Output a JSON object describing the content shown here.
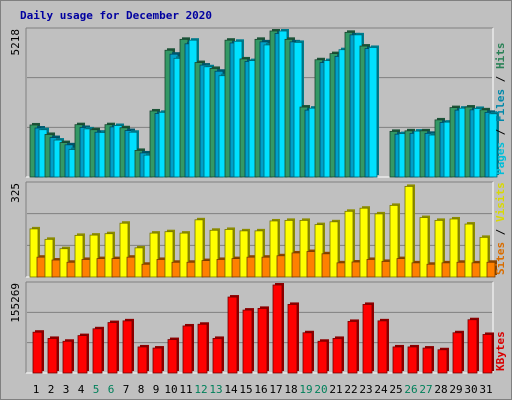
{
  "chart_data": {
    "type": "bar",
    "title": "Daily usage for December 2020",
    "days": [
      "1",
      "2",
      "3",
      "4",
      "5",
      "6",
      "7",
      "8",
      "9",
      "10",
      "11",
      "12",
      "13",
      "14",
      "15",
      "16",
      "17",
      "18",
      "19",
      "20",
      "21",
      "22",
      "23",
      "24",
      "25",
      "26",
      "27",
      "28",
      "29",
      "30",
      "31"
    ],
    "weekend_days": [
      "5",
      "6",
      "12",
      "13",
      "19",
      "20",
      "26",
      "27"
    ],
    "panels": [
      {
        "name": "hits-files-pages",
        "max_label": "5218",
        "ymax": 5218,
        "legend": [
          "Pages",
          "Files",
          "Hits"
        ],
        "series": [
          {
            "name": "Hits",
            "color": "#339966",
            "values": [
              1860,
              1520,
              1230,
              1870,
              1690,
              1870,
              1760,
              950,
              2360,
              4530,
              4920,
              4090,
              3880,
              4890,
              4220,
              4920,
              5218,
              4920,
              2500,
              4190,
              4410,
              5170,
              4680,
              null,
              1630,
              1650,
              1650,
              2040,
              2480,
              2500,
              2400
            ]
          },
          {
            "name": "Files",
            "color": "#00a0c8",
            "values": [
              1750,
              1410,
              1150,
              1770,
              1600,
              1790,
              1660,
              860,
              2270,
              4390,
              4760,
              4000,
              3780,
              4790,
              4130,
              4830,
              5130,
              4830,
              2390,
              4090,
              4310,
              5080,
              4590,
              null,
              1530,
              1560,
              1560,
              1950,
              2390,
              2400,
              2310
            ]
          },
          {
            "name": "Pages",
            "color": "#00e0ff",
            "values": [
              1690,
              1320,
              980,
              1720,
              1590,
              1840,
              1600,
              780,
              2310,
              4240,
              4890,
              3940,
              3620,
              4850,
              4160,
              4720,
              5218,
              4810,
              2460,
              4160,
              4550,
              5080,
              4630,
              null,
              1550,
              1640,
              1500,
              1960,
              2460,
              2450,
              2260
            ]
          }
        ]
      },
      {
        "name": "visits-sites",
        "max_label": "325",
        "ymax": 325,
        "legend": [
          "Sites",
          "Visits"
        ],
        "series": [
          {
            "name": "Visits",
            "color": "#ffff00",
            "values": [
              170,
              133,
              100,
              147,
              148,
              153,
              190,
              103,
              155,
              160,
              155,
              202,
              165,
              168,
              163,
              163,
              198,
              200,
              200,
              185,
              195,
              232,
              243,
              223,
              253,
              320,
              210,
              200,
              205,
              187,
              140
            ]
          },
          {
            "name": "Sites",
            "color": "#ff8000",
            "values": [
              70,
              60,
              52,
              62,
              65,
              65,
              70,
              45,
              62,
              52,
              52,
              58,
              62,
              65,
              70,
              70,
              75,
              85,
              90,
              82,
              50,
              53,
              62,
              55,
              65,
              50,
              45,
              50,
              52,
              50,
              52
            ]
          }
        ]
      },
      {
        "name": "kbytes",
        "max_label": "155269",
        "ymax": 155269,
        "legend": [
          "KBytes"
        ],
        "series": [
          {
            "name": "KBytes",
            "color": "#ff0000",
            "values": [
              72000,
              61000,
              56000,
              66000,
              78000,
              89000,
              92000,
              46000,
              44000,
              59000,
              83000,
              86000,
              61000,
              134000,
              111000,
              114000,
              155269,
              121000,
              71000,
              56000,
              61000,
              91000,
              121000,
              92000,
              46000,
              46000,
              44000,
              41000,
              71000,
              94000,
              68000
            ]
          }
        ]
      }
    ]
  }
}
